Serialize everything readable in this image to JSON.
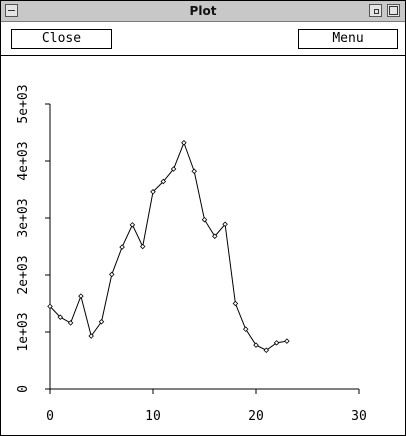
{
  "window": {
    "title": "Plot"
  },
  "toolbar": {
    "close_label": "Close",
    "menu_label": "Menu"
  },
  "chart_data": {
    "type": "line",
    "title": "",
    "xlabel": "",
    "ylabel": "",
    "xlim": [
      0,
      30
    ],
    "ylim": [
      0,
      5000
    ],
    "x_ticks": [
      0,
      10,
      20,
      30
    ],
    "x_tick_labels": [
      "0",
      "10",
      "20",
      "30"
    ],
    "y_ticks": [
      0,
      1000,
      2000,
      3000,
      4000,
      5000
    ],
    "y_tick_labels": [
      "0",
      "1e+03",
      "2e+03",
      "3e+03",
      "4e+03",
      "5e+03"
    ],
    "grid": false,
    "series": [
      {
        "marker": "diamond",
        "color": "#000000",
        "x": [
          0,
          1,
          2,
          3,
          4,
          5,
          6,
          7,
          8,
          9,
          10,
          11,
          12,
          13,
          14,
          15,
          16,
          17,
          18,
          19,
          20,
          21,
          22,
          23
        ],
        "y": [
          1450,
          1260,
          1160,
          1630,
          930,
          1180,
          2010,
          2490,
          2880,
          2500,
          3460,
          3640,
          3860,
          4320,
          3820,
          2970,
          2680,
          2890,
          1500,
          1050,
          770,
          680,
          810,
          840
        ]
      }
    ]
  }
}
